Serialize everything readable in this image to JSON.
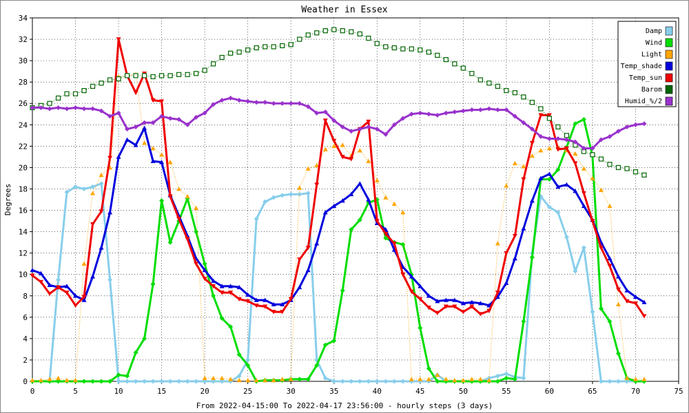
{
  "chart_data": {
    "type": "line",
    "title": "Weather in Essex",
    "xlabel": "From 2022-04-15:00 To 2022-04-17 23:56:00 - hourly steps (3 days)",
    "ylabel": "Degrees",
    "xlim": [
      0,
      75
    ],
    "ylim": [
      0,
      34
    ],
    "xticks": [
      0,
      5,
      10,
      15,
      20,
      25,
      30,
      35,
      40,
      45,
      50,
      55,
      60,
      65,
      70,
      75
    ],
    "yticks": [
      0,
      2,
      4,
      6,
      8,
      10,
      12,
      14,
      16,
      18,
      20,
      22,
      24,
      26,
      28,
      30,
      32,
      34
    ],
    "grid": true,
    "legend_position": "top-right",
    "series": [
      {
        "name": "Damp",
        "color": "#87CEEB",
        "marker": "diamond",
        "style": "solid",
        "width": 3,
        "values": [
          0,
          0,
          0,
          9.5,
          17.7,
          18.2,
          18.0,
          18.2,
          18.5,
          9.5,
          0,
          0,
          0,
          0,
          0,
          0,
          0,
          0,
          0,
          0,
          0,
          0,
          0,
          0,
          0.5,
          2.0,
          15.2,
          16.8,
          17.2,
          17.4,
          17.5,
          17.5,
          17.6,
          2.0,
          0.3,
          0,
          0,
          0,
          0,
          0,
          0,
          0,
          0,
          0,
          0,
          0,
          0,
          0.6,
          0,
          0,
          0,
          0,
          0,
          0.3,
          0.5,
          0.7,
          0.4,
          0.3,
          12.0,
          17.3,
          16.3,
          15.8,
          13.5,
          10.3,
          12.5,
          6.5,
          0,
          0,
          0,
          0,
          0,
          0
        ]
      },
      {
        "name": "Wind",
        "color": "#00DD00",
        "marker": "diamond",
        "style": "solid",
        "width": 3,
        "values": [
          0,
          0,
          0,
          0,
          0,
          0,
          0,
          0,
          0,
          0,
          0.6,
          0.5,
          2.7,
          4.0,
          9.1,
          16.9,
          13.0,
          15.0,
          17.1,
          14.0,
          11.0,
          8.0,
          5.9,
          5.1,
          2.5,
          1.5,
          0,
          0.1,
          0.1,
          0.1,
          0.2,
          0.2,
          0.2,
          1.5,
          3.4,
          3.8,
          8.5,
          14.2,
          15.1,
          16.7,
          17.0,
          13.4,
          13.0,
          12.8,
          10.0,
          5.0,
          1.2,
          0,
          0,
          0,
          0,
          0,
          0,
          0,
          0,
          0.3,
          0.2,
          5.6,
          11.6,
          18.9,
          18.9,
          19.8,
          21.9,
          24.1,
          24.5,
          21.1,
          6.8,
          5.6,
          2.6,
          0.3,
          0,
          0
        ]
      },
      {
        "name": "Light",
        "color": "#FFA500",
        "marker": "triangle-up",
        "style": "dotted",
        "width": 1,
        "values": [
          0.1,
          0.1,
          0.2,
          0.3,
          0.1,
          0.1,
          11.0,
          17.6,
          19.3,
          20.0,
          28.5,
          28.6,
          28.7,
          22.3,
          21.8,
          21.2,
          20.5,
          18.0,
          17.3,
          16.2,
          0.3,
          0.3,
          0.3,
          0.2,
          0.1,
          0.1,
          0.1,
          0.1,
          0.1,
          0.2,
          0.2,
          18.1,
          19.9,
          20.2,
          21.7,
          22.0,
          22.1,
          21.1,
          21.6,
          20.6,
          18.8,
          17.2,
          16.6,
          15.8,
          0.2,
          0.2,
          0.2,
          0.6,
          0.2,
          0.1,
          0.1,
          0.2,
          0.2,
          0.1,
          12.9,
          18.3,
          20.4,
          20.1,
          21.1,
          21.6,
          21.8,
          21.9,
          21.6,
          21.3,
          19.9,
          19.0,
          17.9,
          16.4,
          7.2,
          0.3,
          0.2,
          0.2
        ]
      },
      {
        "name": "Temp_shade",
        "color": "#0000DD",
        "marker": "triangle-up",
        "style": "solid",
        "width": 3,
        "values": [
          10.4,
          10.1,
          9.0,
          8.8,
          8.9,
          8.0,
          7.6,
          9.8,
          12.5,
          15.8,
          21.0,
          22.6,
          22.1,
          23.7,
          20.6,
          20.5,
          17.4,
          15.5,
          13.6,
          11.5,
          10.4,
          9.4,
          8.9,
          8.9,
          8.8,
          8.1,
          7.6,
          7.6,
          7.2,
          7.2,
          7.6,
          8.8,
          10.4,
          12.9,
          15.8,
          16.4,
          16.9,
          17.5,
          18.5,
          17.0,
          14.8,
          14.2,
          12.3,
          10.7,
          9.8,
          8.9,
          8.0,
          7.5,
          7.6,
          7.6,
          7.3,
          7.4,
          7.3,
          7.1,
          7.9,
          9.2,
          11.5,
          14.3,
          16.9,
          19.0,
          19.4,
          18.2,
          18.4,
          17.8,
          16.4,
          15.1,
          13.0,
          11.5,
          9.8,
          8.5,
          7.9,
          7.4
        ]
      },
      {
        "name": "Temp_sun",
        "color": "#EE0000",
        "marker": "triangle-down",
        "style": "solid",
        "width": 3,
        "values": [
          9.9,
          9.3,
          8.2,
          8.8,
          8.3,
          7.1,
          7.9,
          14.7,
          15.9,
          20.9,
          32.0,
          28.6,
          27.0,
          28.8,
          26.3,
          26.2,
          17.3,
          15.2,
          13.3,
          11.0,
          9.6,
          8.9,
          8.3,
          8.3,
          7.7,
          7.5,
          7.1,
          7.0,
          6.5,
          6.5,
          7.7,
          11.4,
          12.5,
          18.4,
          24.4,
          22.5,
          21.0,
          20.8,
          23.6,
          24.3,
          15.0,
          13.8,
          12.9,
          10.0,
          8.4,
          7.7,
          6.9,
          6.4,
          7.0,
          7.0,
          6.5,
          7.0,
          6.3,
          6.6,
          8.3,
          12.0,
          13.6,
          18.9,
          22.3,
          24.9,
          24.9,
          21.7,
          21.8,
          20.4,
          17.6,
          15.0,
          12.5,
          10.8,
          8.6,
          7.5,
          7.3,
          6.1
        ]
      },
      {
        "name": "Barom",
        "color": "#006400",
        "marker": "square",
        "style": "dotted",
        "width": 1,
        "values": [
          25.6,
          25.8,
          26.0,
          26.5,
          26.9,
          26.9,
          27.2,
          27.6,
          27.9,
          28.2,
          28.3,
          28.6,
          28.6,
          28.6,
          28.5,
          28.6,
          28.6,
          28.7,
          28.7,
          28.8,
          29.1,
          29.7,
          30.3,
          30.7,
          30.8,
          31.0,
          31.2,
          31.3,
          31.3,
          31.4,
          31.5,
          32.0,
          32.4,
          32.6,
          32.8,
          32.9,
          32.8,
          32.7,
          32.5,
          32.1,
          31.6,
          31.3,
          31.2,
          31.1,
          31.1,
          31.0,
          30.8,
          30.5,
          30.1,
          29.7,
          29.3,
          28.8,
          28.2,
          27.9,
          27.6,
          27.2,
          27.0,
          26.6,
          26.1,
          25.5,
          24.6,
          23.8,
          23.0,
          22.1,
          21.5,
          21.2,
          20.8,
          20.3,
          20.0,
          19.9,
          19.6,
          19.3
        ]
      },
      {
        "name": "Humid_%/2",
        "color": "#9932CC",
        "marker": "diamond",
        "style": "solid",
        "width": 3,
        "values": [
          25.6,
          25.6,
          25.5,
          25.6,
          25.5,
          25.6,
          25.5,
          25.5,
          25.3,
          24.8,
          25.1,
          23.6,
          23.8,
          24.2,
          24.2,
          24.8,
          24.6,
          24.5,
          24.0,
          24.7,
          25.1,
          25.9,
          26.3,
          26.5,
          26.3,
          26.2,
          26.1,
          26.1,
          26.0,
          26.0,
          26.0,
          26.0,
          25.7,
          25.1,
          25.2,
          24.4,
          23.8,
          23.4,
          23.6,
          23.8,
          23.6,
          23.1,
          24.0,
          24.6,
          25.0,
          25.1,
          25.0,
          24.9,
          25.1,
          25.2,
          25.3,
          25.4,
          25.4,
          25.5,
          25.4,
          25.4,
          24.8,
          24.2,
          23.6,
          22.9,
          22.7,
          22.7,
          22.6,
          22.4,
          21.8,
          21.8,
          22.6,
          22.9,
          23.4,
          23.8,
          24.0,
          24.1
        ]
      }
    ]
  }
}
